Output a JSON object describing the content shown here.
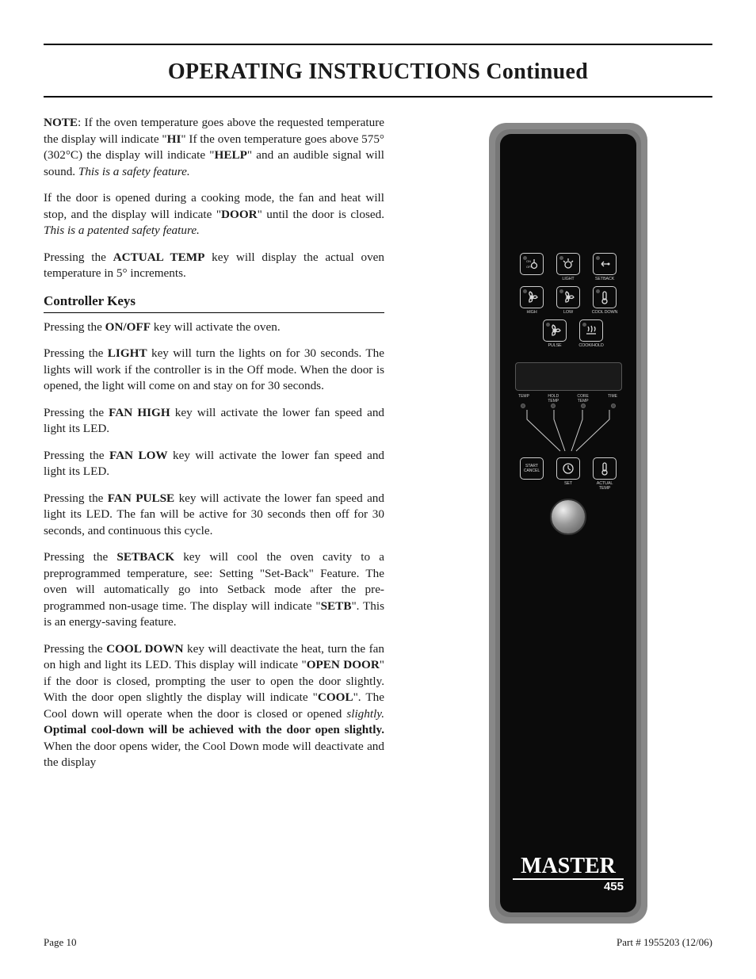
{
  "title": "OPERATING INSTRUCTIONS Continued",
  "note_prefix": "NOTE",
  "p1_a": ":  If the oven temperature goes above the requested temperature the display will indicate \"",
  "p1_hi": "HI",
  "p1_b": "\" If the oven temperature goes above 575°(302°C) the display will indicate \"",
  "p1_help": "HELP",
  "p1_c": "\" and an audible signal will sound. ",
  "p1_safety": "This is a safety feature.",
  "p2_a": "If the door is opened during a cooking mode, the fan and heat will stop, and the display will indicate \"",
  "p2_door": "DOOR",
  "p2_b": "\" until the door is closed. ",
  "p2_patent": "This is a patented safety feature.",
  "p3_a": "Pressing the ",
  "p3_actual": "ACTUAL TEMP",
  "p3_b": " key will display the actual oven temperature in 5° increments.",
  "subhead": "Controller Keys",
  "p4_a": "Pressing the ",
  "p4_onoff": "ON/OFF",
  "p4_b": " key will activate the oven.",
  "p5_a": "Pressing the ",
  "p5_light": "LIGHT",
  "p5_b": " key will turn the lights on for 30 seconds. The lights will work if the controller is in the Off mode. When the door is opened, the light will come on and stay on for 30 seconds.",
  "p6_a": "Pressing the ",
  "p6_fh": "FAN HIGH",
  "p6_b": " key will activate the lower fan speed and light its LED.",
  "p7_a": "Pressing the ",
  "p7_fl": "FAN LOW",
  "p7_b": " key will activate the lower fan speed and light its LED.",
  "p8_a": "Pressing the ",
  "p8_fp": "FAN PULSE",
  "p8_b": " key will activate the lower fan speed and light its LED. The fan will be active for 30 seconds then off for 30 seconds, and continuous this cycle.",
  "p9_a": "Pressing the ",
  "p9_sb": "SETBACK",
  "p9_b": " key will cool the oven cavity to a preprogrammed temperature, see: Setting \"Set-Back\" Feature. The oven will automatically go into Setback mode after the pre-programmed non-usage time. The display will indicate \"",
  "p9_setb": "SETB",
  "p9_c": "\". This is an energy-saving feature.",
  "p10_a": "Pressing the ",
  "p10_cd": "COOL DOWN",
  "p10_b": " key will deactivate the heat, turn the fan on high and light its LED. This display will indicate \"",
  "p10_od": "OPEN DOOR",
  "p10_c": "\" if the door is closed, prompting the user to open the door slightly. With the door open slightly the display will indicate \"",
  "p10_cool": "COOL",
  "p10_d": "\". The Cool down will operate when the door is closed or opened ",
  "p10_sl": "slightly.",
  "p10_opt": " Optimal cool-down will be achieved with the door open slightly.",
  "p10_e": " When the door opens wider, the Cool Down mode will deactivate and the display",
  "footer_left": "Page 10",
  "footer_right": "Part # 1955203 (12/06)",
  "panel": {
    "row1": [
      {
        "label": "",
        "icon": "onoff"
      },
      {
        "label": "LIGHT",
        "icon": "light"
      },
      {
        "label": "SETBACK",
        "icon": "setback"
      }
    ],
    "row2": [
      {
        "label": "HIGH",
        "icon": "fan"
      },
      {
        "label": "LOW",
        "icon": "fan"
      },
      {
        "label": "COOL DOWN",
        "icon": "therm"
      }
    ],
    "row3": [
      {
        "label": "PULSE",
        "icon": "fan"
      },
      {
        "label": "COOK/HOLD",
        "icon": "heat"
      }
    ],
    "disp_labels": [
      "TEMP",
      "HOLD\nTEMP",
      "CORE\nTEMP",
      "TIME"
    ],
    "row4": [
      {
        "label": "",
        "text": "START\nCANCEL"
      },
      {
        "label": "SET",
        "icon": "set"
      },
      {
        "label": "ACTUAL\nTEMP",
        "icon": "therm"
      }
    ],
    "brand": "MASTER",
    "model": "455"
  }
}
